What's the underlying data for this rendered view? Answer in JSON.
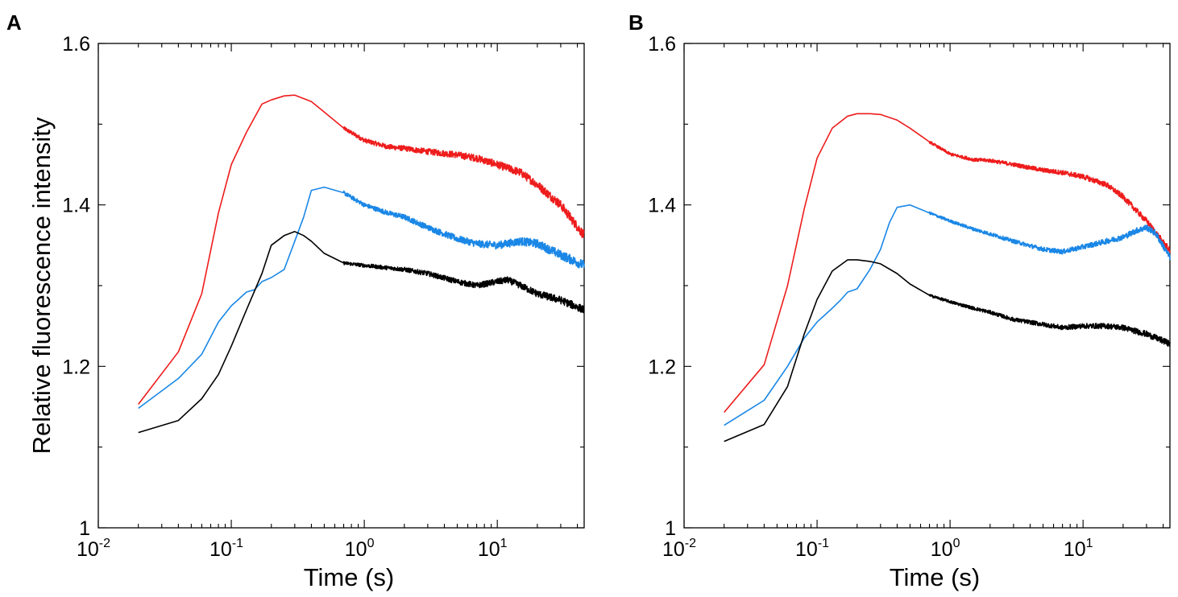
{
  "chart_data": [
    {
      "type": "line",
      "panel_label": "A",
      "xlabel": "Time (s)",
      "ylabel": "Relative fluorescence intensity",
      "xscale": "log",
      "xlim": [
        0.01,
        45
      ],
      "ylim": [
        1.0,
        1.6
      ],
      "x_ticks": [
        {
          "value": 0.01,
          "base": "10",
          "exp": "-2"
        },
        {
          "value": 0.1,
          "base": "10",
          "exp": "-1"
        },
        {
          "value": 1,
          "base": "10",
          "exp": "0"
        },
        {
          "value": 10,
          "base": "10",
          "exp": "1"
        }
      ],
      "y_ticks": [
        {
          "value": 1.0,
          "label": "1"
        },
        {
          "value": 1.2,
          "label": "1.2"
        },
        {
          "value": 1.4,
          "label": "1.4"
        },
        {
          "value": 1.6,
          "label": "1.6"
        }
      ],
      "series": [
        {
          "name": "red",
          "color": "#ee1c1c",
          "x": [
            0.02,
            0.04,
            0.06,
            0.08,
            0.1,
            0.13,
            0.17,
            0.2,
            0.25,
            0.3,
            0.4,
            0.5,
            0.7,
            1,
            1.5,
            2,
            3,
            5,
            7,
            10,
            15,
            20,
            30,
            45
          ],
          "y": [
            1.153,
            1.218,
            1.29,
            1.39,
            1.45,
            1.49,
            1.525,
            1.53,
            1.535,
            1.536,
            1.528,
            1.515,
            1.495,
            1.48,
            1.472,
            1.47,
            1.466,
            1.462,
            1.458,
            1.45,
            1.44,
            1.425,
            1.4,
            1.362
          ],
          "noise": 0.006
        },
        {
          "name": "blue",
          "color": "#1a87e6",
          "x": [
            0.02,
            0.04,
            0.06,
            0.08,
            0.1,
            0.13,
            0.15,
            0.17,
            0.2,
            0.25,
            0.3,
            0.35,
            0.4,
            0.5,
            0.7,
            1,
            1.5,
            2,
            3,
            5,
            7,
            10,
            15,
            20,
            30,
            45
          ],
          "y": [
            1.148,
            1.185,
            1.215,
            1.255,
            1.275,
            1.292,
            1.295,
            1.305,
            1.31,
            1.32,
            1.355,
            1.385,
            1.418,
            1.422,
            1.415,
            1.4,
            1.39,
            1.385,
            1.372,
            1.358,
            1.352,
            1.35,
            1.355,
            1.352,
            1.338,
            1.325
          ],
          "noise": 0.006
        },
        {
          "name": "black",
          "color": "#000000",
          "x": [
            0.02,
            0.04,
            0.06,
            0.08,
            0.1,
            0.13,
            0.17,
            0.2,
            0.25,
            0.3,
            0.35,
            0.4,
            0.5,
            0.7,
            1,
            1.5,
            2,
            3,
            5,
            7,
            10,
            12,
            15,
            20,
            30,
            45
          ],
          "y": [
            1.118,
            1.133,
            1.16,
            1.19,
            1.225,
            1.27,
            1.315,
            1.35,
            1.362,
            1.367,
            1.362,
            1.355,
            1.34,
            1.328,
            1.325,
            1.322,
            1.32,
            1.315,
            1.305,
            1.3,
            1.305,
            1.307,
            1.3,
            1.29,
            1.282,
            1.27
          ],
          "noise": 0.005
        }
      ]
    },
    {
      "type": "line",
      "panel_label": "B",
      "xlabel": "Time (s)",
      "ylabel": "",
      "xscale": "log",
      "xlim": [
        0.01,
        45
      ],
      "ylim": [
        1.0,
        1.6
      ],
      "x_ticks": [
        {
          "value": 0.01,
          "base": "10",
          "exp": "-2"
        },
        {
          "value": 0.1,
          "base": "10",
          "exp": "-1"
        },
        {
          "value": 1,
          "base": "10",
          "exp": "0"
        },
        {
          "value": 10,
          "base": "10",
          "exp": "1"
        }
      ],
      "y_ticks": [
        {
          "value": 1.0,
          "label": "1"
        },
        {
          "value": 1.2,
          "label": "1.2"
        },
        {
          "value": 1.4,
          "label": "1.4"
        },
        {
          "value": 1.6,
          "label": "1.6"
        }
      ],
      "series": [
        {
          "name": "red",
          "color": "#ee1c1c",
          "x": [
            0.02,
            0.04,
            0.06,
            0.08,
            0.1,
            0.13,
            0.17,
            0.2,
            0.25,
            0.3,
            0.4,
            0.5,
            0.7,
            1,
            1.5,
            2,
            3,
            5,
            7,
            10,
            15,
            20,
            30,
            45
          ],
          "y": [
            1.143,
            1.202,
            1.3,
            1.395,
            1.458,
            1.495,
            1.51,
            1.513,
            1.513,
            1.512,
            1.505,
            1.495,
            1.478,
            1.463,
            1.456,
            1.455,
            1.45,
            1.443,
            1.44,
            1.435,
            1.425,
            1.41,
            1.38,
            1.343
          ],
          "noise": 0.004
        },
        {
          "name": "blue",
          "color": "#1a87e6",
          "x": [
            0.02,
            0.04,
            0.06,
            0.08,
            0.1,
            0.13,
            0.15,
            0.17,
            0.2,
            0.25,
            0.3,
            0.35,
            0.4,
            0.5,
            0.7,
            1,
            1.5,
            2,
            3,
            5,
            7,
            10,
            15,
            20,
            25,
            30,
            35,
            45
          ],
          "y": [
            1.127,
            1.158,
            1.2,
            1.235,
            1.255,
            1.272,
            1.282,
            1.292,
            1.296,
            1.32,
            1.345,
            1.378,
            1.397,
            1.4,
            1.39,
            1.38,
            1.37,
            1.364,
            1.355,
            1.345,
            1.342,
            1.348,
            1.355,
            1.36,
            1.368,
            1.372,
            1.365,
            1.335
          ],
          "noise": 0.004
        },
        {
          "name": "black",
          "color": "#000000",
          "x": [
            0.02,
            0.04,
            0.06,
            0.08,
            0.1,
            0.13,
            0.17,
            0.2,
            0.25,
            0.3,
            0.4,
            0.5,
            0.7,
            1,
            1.5,
            2,
            3,
            5,
            7,
            10,
            15,
            20,
            30,
            45
          ],
          "y": [
            1.107,
            1.128,
            1.175,
            1.24,
            1.283,
            1.318,
            1.332,
            1.332,
            1.33,
            1.327,
            1.315,
            1.302,
            1.288,
            1.28,
            1.272,
            1.267,
            1.258,
            1.252,
            1.248,
            1.25,
            1.25,
            1.248,
            1.24,
            1.228
          ],
          "noise": 0.004
        }
      ]
    }
  ]
}
